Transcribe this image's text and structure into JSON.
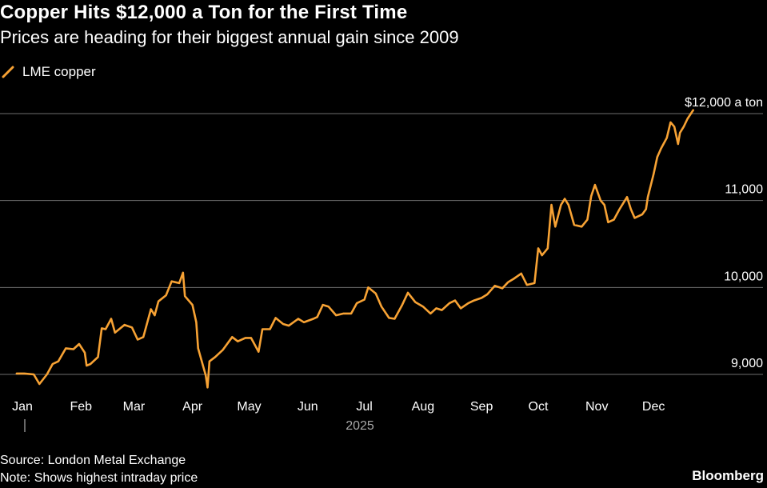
{
  "header": {
    "title": "Copper Hits $12,000 a Ton for the First Time",
    "subtitle": "Prices are heading for their biggest annual gain since 2009"
  },
  "legend": {
    "label": "LME copper",
    "color": "#f7a234"
  },
  "annotation": {
    "text": "$12,000 a ton"
  },
  "footer": {
    "source": "Source: London Metal Exchange",
    "note": "Note: Shows highest intraday price",
    "brand": "Bloomberg"
  },
  "colors": {
    "background": "#000000",
    "line": "#f7a234",
    "grid": "#6e6e6e",
    "text": "#ffffff"
  },
  "chart_data": {
    "type": "line",
    "title": "Copper Hits $12,000 a Ton for the First Time",
    "subtitle": "Prices are heading for their biggest annual gain since 2009",
    "xlabel": "2025",
    "ylabel": "",
    "ylim": [
      8870,
      12200
    ],
    "xlim": [
      "2025-01-01",
      "2025-12-31"
    ],
    "grid": "horizontal",
    "legend_position": "top-left",
    "y_ticks": [
      {
        "value": 9000,
        "label": "9,000"
      },
      {
        "value": 10000,
        "label": "10,000"
      },
      {
        "value": 11000,
        "label": "11,000"
      },
      {
        "value": 12000,
        "label": "$12,000 a ton"
      }
    ],
    "x_ticks": [
      {
        "date": "2025-01-01",
        "label": "Jan"
      },
      {
        "date": "2025-02-01",
        "label": "Feb"
      },
      {
        "date": "2025-03-01",
        "label": "Mar"
      },
      {
        "date": "2025-04-01",
        "label": "Apr"
      },
      {
        "date": "2025-05-01",
        "label": "May"
      },
      {
        "date": "2025-06-01",
        "label": "Jun"
      },
      {
        "date": "2025-07-01",
        "label": "Jul"
      },
      {
        "date": "2025-08-01",
        "label": "Aug"
      },
      {
        "date": "2025-09-01",
        "label": "Sep"
      },
      {
        "date": "2025-10-01",
        "label": "Oct"
      },
      {
        "date": "2025-11-01",
        "label": "Nov"
      },
      {
        "date": "2025-12-01",
        "label": "Dec"
      }
    ],
    "series": [
      {
        "name": "LME copper",
        "color": "#f7a234",
        "points": [
          [
            "2024-12-29",
            9010
          ],
          [
            "2025-01-02",
            9010
          ],
          [
            "2025-01-07",
            9000
          ],
          [
            "2025-01-10",
            8890
          ],
          [
            "2025-01-14",
            9000
          ],
          [
            "2025-01-17",
            9120
          ],
          [
            "2025-01-20",
            9150
          ],
          [
            "2025-01-24",
            9300
          ],
          [
            "2025-01-28",
            9290
          ],
          [
            "2025-01-31",
            9350
          ],
          [
            "2025-02-03",
            9250
          ],
          [
            "2025-02-04",
            9100
          ],
          [
            "2025-02-06",
            9120
          ],
          [
            "2025-02-10",
            9200
          ],
          [
            "2025-02-12",
            9530
          ],
          [
            "2025-02-14",
            9520
          ],
          [
            "2025-02-17",
            9640
          ],
          [
            "2025-02-19",
            9480
          ],
          [
            "2025-02-24",
            9570
          ],
          [
            "2025-02-28",
            9540
          ],
          [
            "2025-03-03",
            9400
          ],
          [
            "2025-03-06",
            9430
          ],
          [
            "2025-03-10",
            9750
          ],
          [
            "2025-03-12",
            9680
          ],
          [
            "2025-03-14",
            9840
          ],
          [
            "2025-03-18",
            9910
          ],
          [
            "2025-03-21",
            10070
          ],
          [
            "2025-03-25",
            10050
          ],
          [
            "2025-03-27",
            10170
          ],
          [
            "2025-03-28",
            9900
          ],
          [
            "2025-04-01",
            9800
          ],
          [
            "2025-04-03",
            9600
          ],
          [
            "2025-04-04",
            9300
          ],
          [
            "2025-04-08",
            8990
          ],
          [
            "2025-04-09",
            8850
          ],
          [
            "2025-04-10",
            9150
          ],
          [
            "2025-04-13",
            9200
          ],
          [
            "2025-04-17",
            9280
          ],
          [
            "2025-04-22",
            9430
          ],
          [
            "2025-04-25",
            9380
          ],
          [
            "2025-04-29",
            9420
          ],
          [
            "2025-05-02",
            9420
          ],
          [
            "2025-05-06",
            9260
          ],
          [
            "2025-05-08",
            9520
          ],
          [
            "2025-05-12",
            9520
          ],
          [
            "2025-05-15",
            9650
          ],
          [
            "2025-05-19",
            9580
          ],
          [
            "2025-05-22",
            9560
          ],
          [
            "2025-05-27",
            9640
          ],
          [
            "2025-05-30",
            9600
          ],
          [
            "2025-06-04",
            9640
          ],
          [
            "2025-06-06",
            9660
          ],
          [
            "2025-06-09",
            9800
          ],
          [
            "2025-06-12",
            9780
          ],
          [
            "2025-06-16",
            9680
          ],
          [
            "2025-06-20",
            9700
          ],
          [
            "2025-06-24",
            9700
          ],
          [
            "2025-06-27",
            9820
          ],
          [
            "2025-07-01",
            9860
          ],
          [
            "2025-07-03",
            10000
          ],
          [
            "2025-07-07",
            9930
          ],
          [
            "2025-07-10",
            9780
          ],
          [
            "2025-07-14",
            9650
          ],
          [
            "2025-07-17",
            9640
          ],
          [
            "2025-07-21",
            9800
          ],
          [
            "2025-07-24",
            9940
          ],
          [
            "2025-07-28",
            9830
          ],
          [
            "2025-08-01",
            9780
          ],
          [
            "2025-08-05",
            9700
          ],
          [
            "2025-08-08",
            9760
          ],
          [
            "2025-08-11",
            9740
          ],
          [
            "2025-08-15",
            9820
          ],
          [
            "2025-08-18",
            9850
          ],
          [
            "2025-08-21",
            9760
          ],
          [
            "2025-08-25",
            9820
          ],
          [
            "2025-08-28",
            9850
          ],
          [
            "2025-09-01",
            9880
          ],
          [
            "2025-09-04",
            9920
          ],
          [
            "2025-09-08",
            10020
          ],
          [
            "2025-09-12",
            9990
          ],
          [
            "2025-09-15",
            10060
          ],
          [
            "2025-09-18",
            10100
          ],
          [
            "2025-09-22",
            10160
          ],
          [
            "2025-09-25",
            10030
          ],
          [
            "2025-09-29",
            10050
          ],
          [
            "2025-10-01",
            10450
          ],
          [
            "2025-10-03",
            10370
          ],
          [
            "2025-10-06",
            10450
          ],
          [
            "2025-10-08",
            10950
          ],
          [
            "2025-10-10",
            10700
          ],
          [
            "2025-10-13",
            10950
          ],
          [
            "2025-10-15",
            11020
          ],
          [
            "2025-10-17",
            10950
          ],
          [
            "2025-10-20",
            10720
          ],
          [
            "2025-10-24",
            10700
          ],
          [
            "2025-10-27",
            10780
          ],
          [
            "2025-10-29",
            11050
          ],
          [
            "2025-10-31",
            11180
          ],
          [
            "2025-11-03",
            11000
          ],
          [
            "2025-11-05",
            10950
          ],
          [
            "2025-11-07",
            10750
          ],
          [
            "2025-11-10",
            10780
          ],
          [
            "2025-11-13",
            10900
          ],
          [
            "2025-11-17",
            11040
          ],
          [
            "2025-11-19",
            10900
          ],
          [
            "2025-11-21",
            10800
          ],
          [
            "2025-11-25",
            10840
          ],
          [
            "2025-11-27",
            10900
          ],
          [
            "2025-11-28",
            11040
          ],
          [
            "2025-12-01",
            11300
          ],
          [
            "2025-12-03",
            11500
          ],
          [
            "2025-12-05",
            11600
          ],
          [
            "2025-12-08",
            11720
          ],
          [
            "2025-12-10",
            11900
          ],
          [
            "2025-12-12",
            11850
          ],
          [
            "2025-12-14",
            11650
          ],
          [
            "2025-12-15",
            11780
          ],
          [
            "2025-12-17",
            11850
          ],
          [
            "2025-12-19",
            11940
          ],
          [
            "2025-12-22",
            12040
          ]
        ]
      }
    ]
  }
}
